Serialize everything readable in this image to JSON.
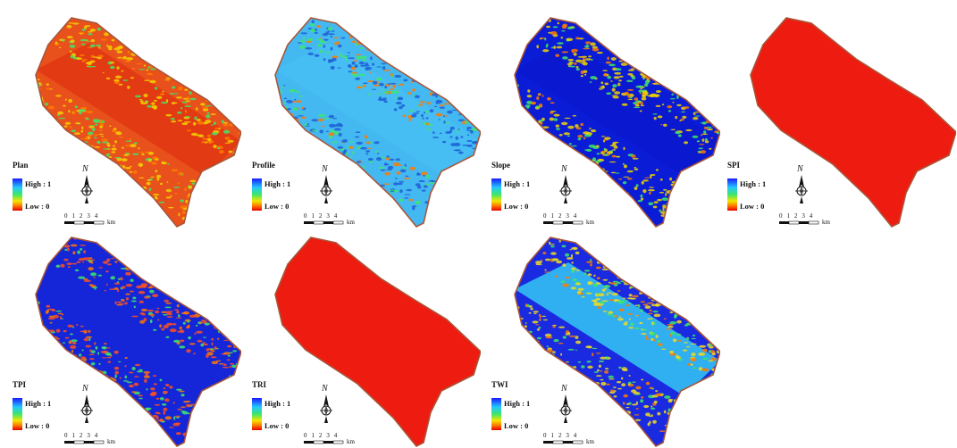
{
  "figure": {
    "legend_high": "High : 1",
    "legend_low": "Low : 0",
    "north_label": "N",
    "scale_ticks": "0 1 2 3 4",
    "scale_unit": "km"
  },
  "maps": [
    {
      "id": "plan",
      "title": "Plan",
      "base_color": "#e8501c",
      "edge_color": "#f5d000",
      "center_color": "#e23a12"
    },
    {
      "id": "profile",
      "title": "Profile",
      "base_color": "#44b8f0",
      "edge_color": "#1d5fd6",
      "center_color": "#46bdf3"
    },
    {
      "id": "slope",
      "title": "Slope",
      "base_color": "#0b1cd6",
      "edge_color": "#f0d400",
      "center_color": "#0a18d0"
    },
    {
      "id": "spi",
      "title": "SPI",
      "base_color": "#ee1c10",
      "edge_color": "#ee1c10",
      "center_color": "#ee1c10"
    },
    {
      "id": "tpi",
      "title": "TPI",
      "base_color": "#1426d8",
      "edge_color": "#ff5020",
      "center_color": "#1426d8"
    },
    {
      "id": "tri",
      "title": "TRI",
      "base_color": "#ee1c10",
      "edge_color": "#ee1c10",
      "center_color": "#ee1c10"
    },
    {
      "id": "twi",
      "title": "TWI",
      "base_color": "#1a2ae0",
      "edge_color": "#f0dc20",
      "center_color": "#30b0f0"
    }
  ]
}
